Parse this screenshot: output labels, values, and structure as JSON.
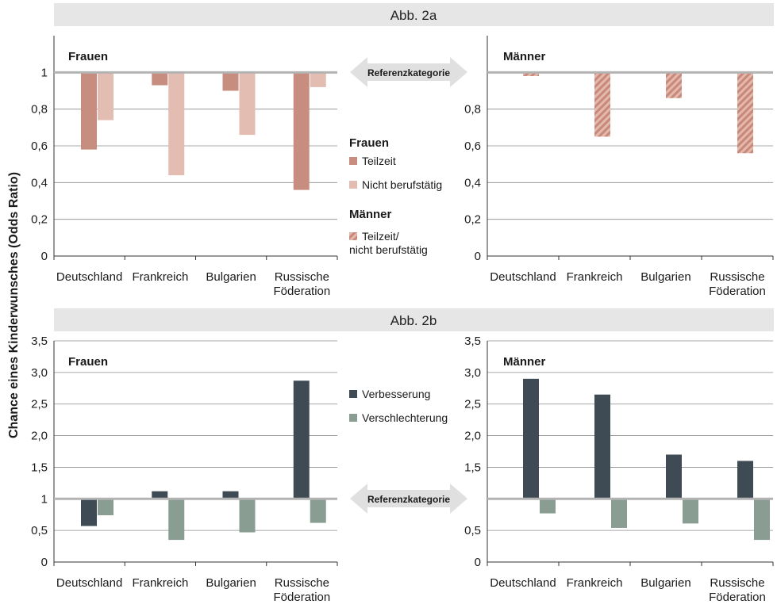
{
  "ylabel": "Chance eines Kinderwunsches (Odds Ratio)",
  "reference_label": "Referenzkategorie",
  "colors": {
    "teilzeit": "#c78e80",
    "nicht_berufstaetig": "#e3bcb2",
    "maenner_hatch_base": "#e4b9ad",
    "maenner_hatch_stripe": "#c8887a",
    "verbesserung": "#3f4b54",
    "verschlechterung": "#8a9d93",
    "reference_line": "#b3b3b3",
    "banner": "#e6e6e6"
  },
  "panels": {
    "a": {
      "title": "Abb. 2a"
    },
    "b": {
      "title": "Abb. 2b"
    }
  },
  "legend_a": {
    "frauen_heading": "Frauen",
    "teilzeit": "Teilzeit",
    "nicht_berufstaetig": "Nicht berufstätig",
    "maenner_heading": "Männer",
    "maenner_line1": "Teilzeit/",
    "maenner_line2": "nicht berufstätig"
  },
  "legend_b": {
    "verbesserung": "Verbesserung",
    "verschlechterung": "Verschlechterung"
  },
  "chart_data": [
    {
      "type": "bar",
      "panel": "Abb. 2a",
      "title": "Frauen",
      "categories": [
        "Deutschland",
        "Frankreich",
        "Bulgarien",
        "Russische Föderation"
      ],
      "baseline": 1,
      "ylim": [
        0,
        1.2
      ],
      "yticks": [
        "0",
        "0,2",
        "0,4",
        "0,6",
        "0,8",
        "1"
      ],
      "series": [
        {
          "name": "Teilzeit",
          "values": [
            0.58,
            0.93,
            0.9,
            0.36
          ]
        },
        {
          "name": "Nicht berufstätig",
          "values": [
            0.74,
            0.44,
            0.66,
            0.92
          ]
        }
      ]
    },
    {
      "type": "bar",
      "panel": "Abb. 2a",
      "title": "Männer",
      "categories": [
        "Deutschland",
        "Frankreich",
        "Bulgarien",
        "Russische Föderation"
      ],
      "baseline": 1,
      "ylim": [
        0,
        1.2
      ],
      "yticks": [
        "0",
        "0,2",
        "0,4",
        "0,6",
        "0,8"
      ],
      "series": [
        {
          "name": "Teilzeit/ nicht berufstätig",
          "values": [
            0.98,
            0.65,
            0.86,
            0.56
          ]
        }
      ]
    },
    {
      "type": "bar",
      "panel": "Abb. 2b",
      "title": "Frauen",
      "categories": [
        "Deutschland",
        "Frankreich",
        "Bulgarien",
        "Russische Föderation"
      ],
      "baseline": 1,
      "ylim": [
        0,
        3.5
      ],
      "yticks": [
        "0",
        "0,5",
        "1",
        "1,5",
        "2,0",
        "2,5",
        "3,0",
        "3,5"
      ],
      "series": [
        {
          "name": "Verbesserung",
          "values": [
            0.57,
            1.12,
            1.12,
            2.87
          ]
        },
        {
          "name": "Verschlechterung",
          "values": [
            0.74,
            0.35,
            0.47,
            0.62
          ]
        }
      ]
    },
    {
      "type": "bar",
      "panel": "Abb. 2b",
      "title": "Männer",
      "categories": [
        "Deutschland",
        "Frankreich",
        "Bulgarien",
        "Russische Föderation"
      ],
      "baseline": 1,
      "ylim": [
        0,
        3.5
      ],
      "yticks": [
        "0",
        "0,5",
        "1,5",
        "2,0",
        "2,5",
        "3,0",
        "3,5"
      ],
      "series": [
        {
          "name": "Verbesserung",
          "values": [
            2.9,
            2.65,
            1.7,
            1.6
          ]
        },
        {
          "name": "Verschlechterung",
          "values": [
            0.77,
            0.54,
            0.61,
            0.35
          ]
        }
      ]
    }
  ]
}
